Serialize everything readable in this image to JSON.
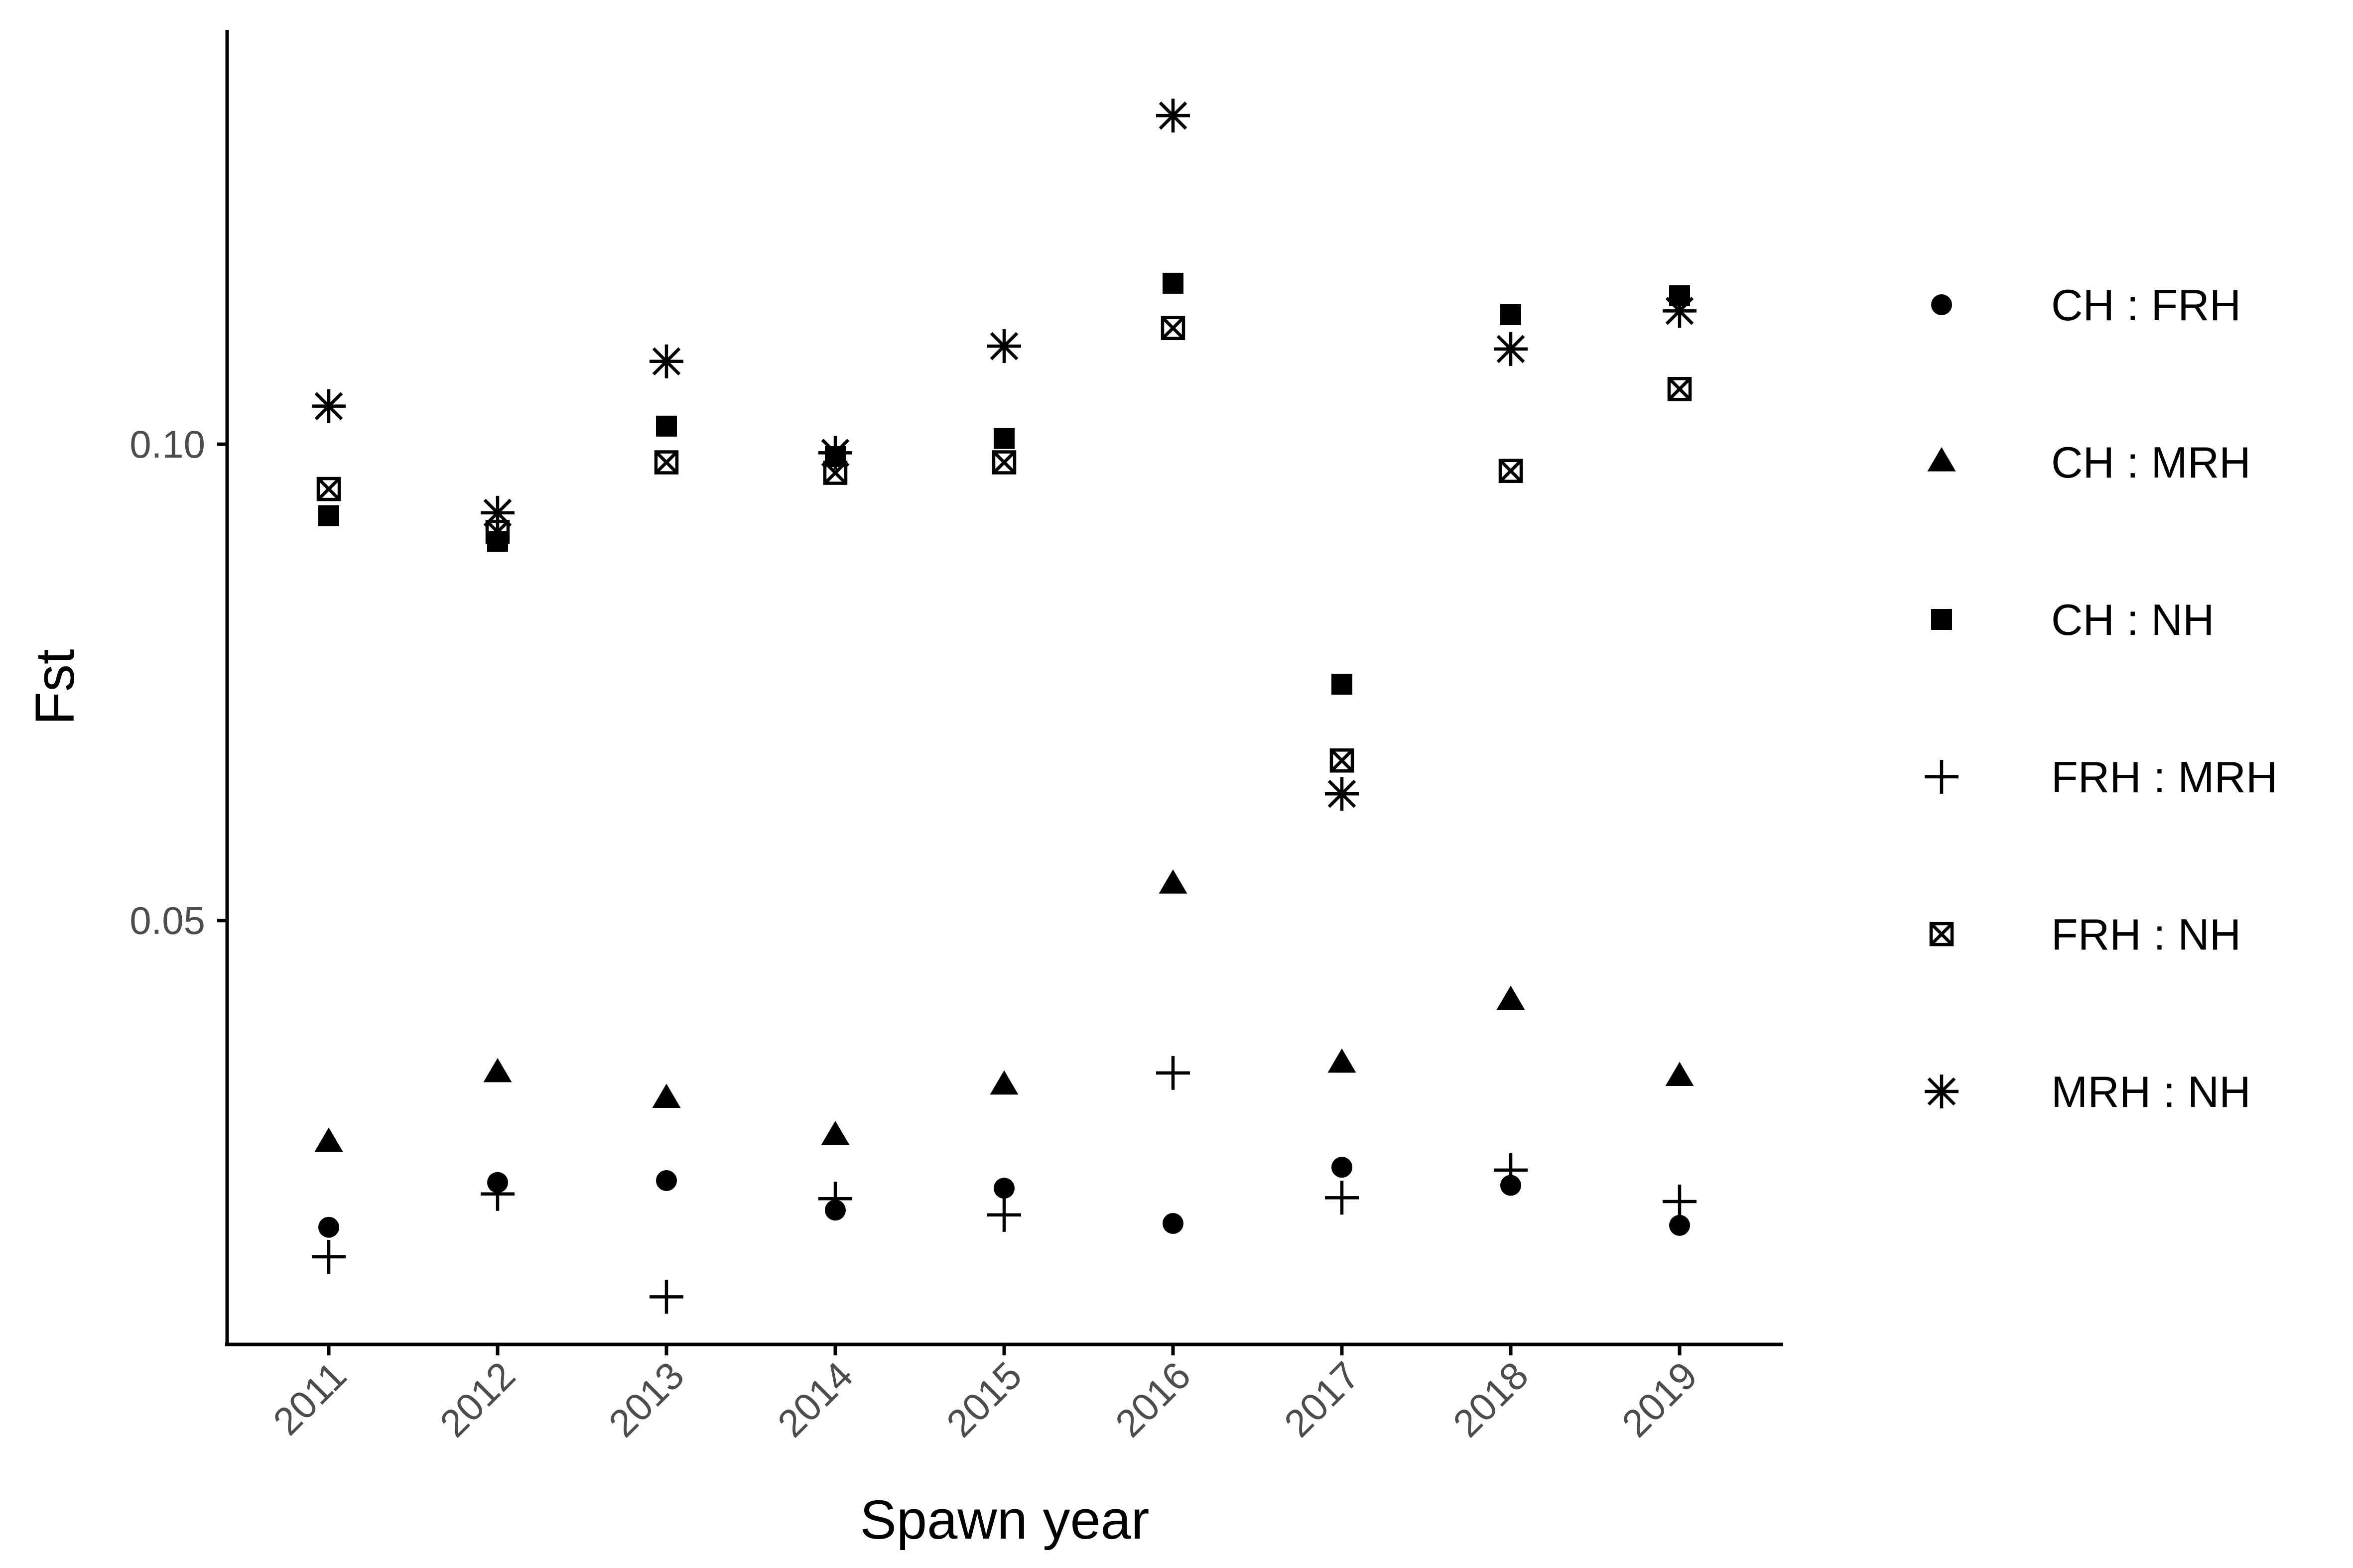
{
  "chart_data": {
    "type": "scatter",
    "xlabel": "Spawn year",
    "ylabel": "Fst",
    "categories": [
      "2011",
      "2012",
      "2013",
      "2014",
      "2015",
      "2016",
      "2017",
      "2018",
      "2019"
    ],
    "y_ticks": [
      "0.05",
      "0.10"
    ],
    "ylim": [
      0.0055,
      0.1435
    ],
    "grid": false,
    "legend_position": "right",
    "series": [
      {
        "name": "CH : FRH",
        "shape": "circle",
        "values": [
          0.0178,
          0.0225,
          0.0227,
          0.0196,
          0.0219,
          0.0182,
          0.0241,
          0.0222,
          0.018
        ]
      },
      {
        "name": "CH : MRH",
        "shape": "triangle",
        "values": [
          0.0267,
          0.034,
          0.0313,
          0.0274,
          0.0327,
          0.0538,
          0.035,
          0.0416,
          0.0336
        ]
      },
      {
        "name": "CH : NH",
        "shape": "square",
        "values": [
          0.0925,
          0.0898,
          0.1019,
          0.0987,
          0.1006,
          0.1169,
          0.0748,
          0.1136,
          0.1156
        ]
      },
      {
        "name": "FRH : MRH",
        "shape": "plus",
        "values": [
          0.0147,
          0.0213,
          0.0105,
          0.0208,
          0.0191,
          0.034,
          0.0209,
          0.0238,
          0.0205
        ]
      },
      {
        "name": "FRH : NH",
        "shape": "boxx",
        "values": [
          0.0953,
          0.0908,
          0.0981,
          0.097,
          0.0981,
          0.1122,
          0.0668,
          0.0972,
          0.1058
        ]
      },
      {
        "name": "MRH : NH",
        "shape": "asterisk",
        "values": [
          0.104,
          0.0928,
          0.1087,
          0.0991,
          0.1103,
          0.1345,
          0.0633,
          0.11,
          0.114
        ]
      }
    ]
  }
}
